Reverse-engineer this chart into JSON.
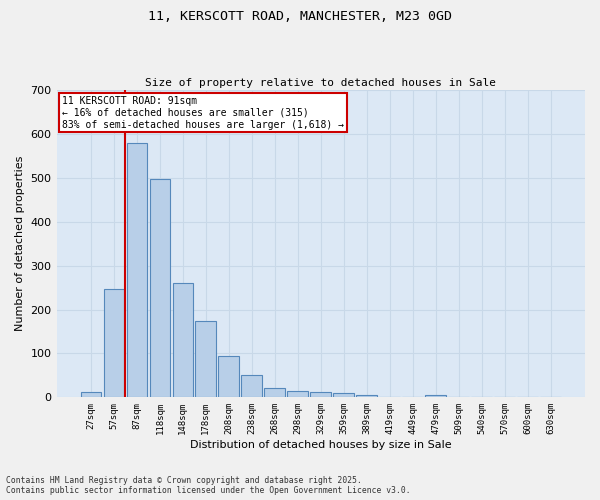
{
  "title_line1": "11, KERSCOTT ROAD, MANCHESTER, M23 0GD",
  "title_line2": "Size of property relative to detached houses in Sale",
  "xlabel": "Distribution of detached houses by size in Sale",
  "ylabel": "Number of detached properties",
  "categories": [
    "27sqm",
    "57sqm",
    "87sqm",
    "118sqm",
    "148sqm",
    "178sqm",
    "208sqm",
    "238sqm",
    "268sqm",
    "298sqm",
    "329sqm",
    "359sqm",
    "389sqm",
    "419sqm",
    "449sqm",
    "479sqm",
    "509sqm",
    "540sqm",
    "570sqm",
    "600sqm",
    "630sqm"
  ],
  "values": [
    13,
    246,
    580,
    497,
    260,
    173,
    95,
    50,
    22,
    15,
    12,
    10,
    5,
    0,
    0,
    5,
    0,
    0,
    0,
    0,
    0
  ],
  "bar_color": "#b8cfe8",
  "bar_edge_color": "#5588bb",
  "grid_color": "#c8d8e8",
  "background_color": "#dce8f5",
  "fig_background_color": "#f0f0f0",
  "annotation_text": "11 KERSCOTT ROAD: 91sqm\n← 16% of detached houses are smaller (315)\n83% of semi-detached houses are larger (1,618) →",
  "annotation_box_color": "#cc0000",
  "property_line_x": 2,
  "ylim": [
    0,
    700
  ],
  "yticks": [
    0,
    100,
    200,
    300,
    400,
    500,
    600,
    700
  ],
  "footer_line1": "Contains HM Land Registry data © Crown copyright and database right 2025.",
  "footer_line2": "Contains public sector information licensed under the Open Government Licence v3.0."
}
